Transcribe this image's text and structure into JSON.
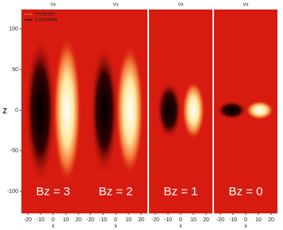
{
  "chart_data": [
    {
      "type": "heatmap",
      "title": "Vx",
      "ylabel": "Z",
      "xlabel": "x",
      "annotation": "Bz = 3",
      "legend": [
        "Predicted",
        "Calculated"
      ],
      "legend_colors": [
        "#e8a020",
        "#000000"
      ],
      "xlim": [
        -25,
        25
      ],
      "xticks": [
        -20,
        -10,
        0,
        10,
        20
      ],
      "ylim": [
        -127,
        124
      ],
      "yticks": [
        -100,
        -50,
        0,
        50,
        100
      ]
    },
    {
      "type": "heatmap",
      "title": "Vx",
      "xlabel": "x",
      "annotation": "Bz = 2",
      "xlim": [
        -25,
        25
      ],
      "xticks": [
        -20,
        -10,
        0,
        10,
        20
      ],
      "ylim": [
        -127,
        124
      ]
    },
    {
      "type": "heatmap",
      "title": "Vx",
      "xlabel": "x",
      "annotation": "Bz = 1",
      "xlim": [
        -25,
        25
      ],
      "xticks": [
        -20,
        -10,
        0,
        10,
        20
      ],
      "ylim": [
        -127,
        124
      ]
    },
    {
      "type": "heatmap",
      "title": "Vx",
      "xlabel": "x",
      "annotation": "Bz = 0",
      "xlim": [
        -25,
        25
      ],
      "xticks": [
        -20,
        -10,
        0,
        10,
        20
      ],
      "ylim": [
        -127,
        124
      ]
    }
  ]
}
